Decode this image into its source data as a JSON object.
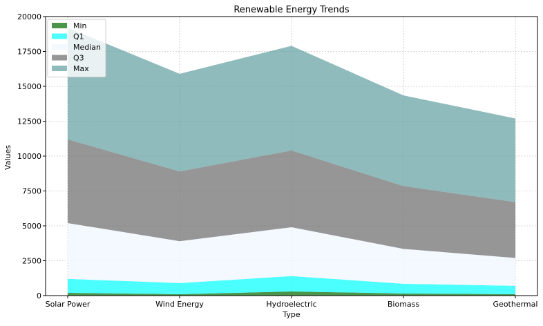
{
  "chart_data": {
    "type": "area",
    "stacked": true,
    "title": "Renewable Energy Trends",
    "xlabel": "Type",
    "ylabel": "Values",
    "categories": [
      "Solar Power",
      "Wind Energy",
      "Hydroelectric",
      "Biomass",
      "Geothermal"
    ],
    "ylim": [
      0,
      20000
    ],
    "yticks": [
      0,
      2500,
      5000,
      7500,
      10000,
      12500,
      15000,
      17500,
      20000
    ],
    "grid": true,
    "legend_position": "top-left",
    "series": [
      {
        "name": "Min",
        "color": "#1e7b1e",
        "alpha": 0.8,
        "values": [
          200,
          100,
          300,
          150,
          100
        ]
      },
      {
        "name": "Q1",
        "color": "#00ffff",
        "alpha": 0.7,
        "values": [
          1000,
          800,
          1100,
          700,
          600
        ]
      },
      {
        "name": "Median",
        "color": "#f0f8ff",
        "alpha": 0.8,
        "values": [
          4000,
          3000,
          3500,
          2500,
          2000
        ]
      },
      {
        "name": "Q3",
        "color": "#696969",
        "alpha": 0.7,
        "values": [
          6000,
          5000,
          5500,
          4500,
          4000
        ]
      },
      {
        "name": "Max",
        "color": "#5f9ea0",
        "alpha": 0.7,
        "values": [
          8000,
          7000,
          7500,
          6500,
          6000
        ]
      }
    ]
  }
}
